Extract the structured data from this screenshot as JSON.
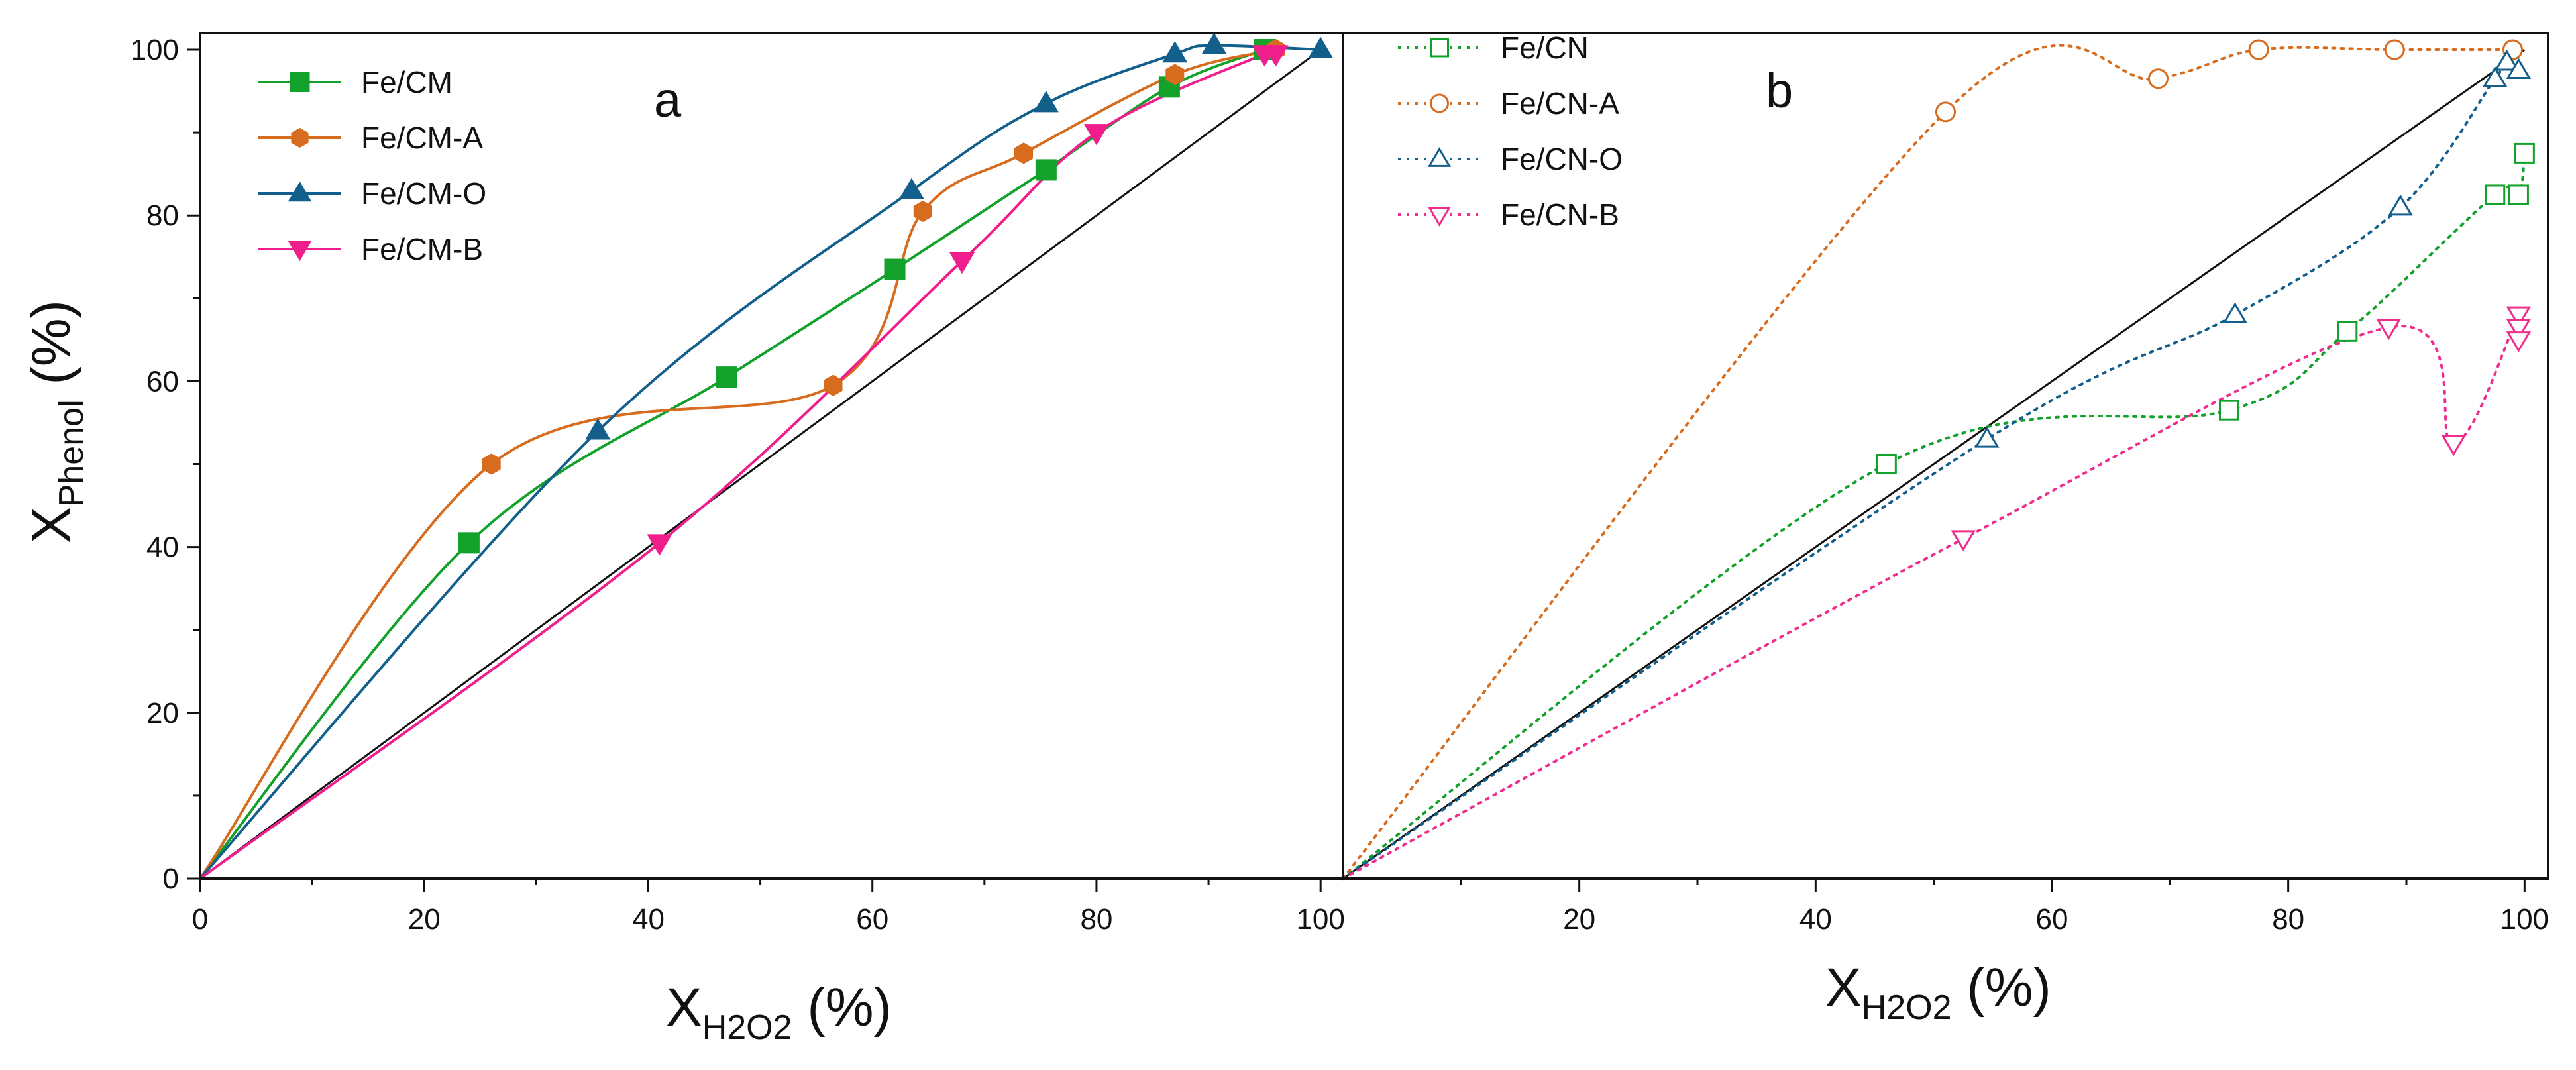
{
  "chart_data": [
    {
      "panel": "a",
      "type": "line",
      "x_label": "X",
      "x_label_sub": "H2O2",
      "x_label_unit": "(%)",
      "y_label": "X",
      "y_label_sub": "Phenol",
      "y_label_unit": "(%)",
      "xlim": [
        0,
        102
      ],
      "ylim": [
        0,
        102
      ],
      "xticks": [
        0,
        20,
        40,
        60,
        80,
        100
      ],
      "yticks": [
        0,
        20,
        40,
        60,
        80,
        100
      ],
      "legend_position": "top-left",
      "diagonal": true,
      "series": [
        {
          "name": "Fe/CM",
          "color": "#12a12a",
          "marker": "square",
          "filled": true,
          "line": "solid",
          "x": [
            0,
            24,
            47,
            62,
            75.5,
            86.5,
            95
          ],
          "y": [
            0,
            40.5,
            60.5,
            73.5,
            85.5,
            95.5,
            100
          ]
        },
        {
          "name": "Fe/CM-A",
          "color": "#d86c1e",
          "marker": "hexagon",
          "filled": true,
          "line": "solid",
          "x": [
            0,
            26,
            56.5,
            64.5,
            73.5,
            87,
            96
          ],
          "y": [
            0,
            50,
            59.5,
            80.5,
            87.5,
            97,
            100
          ]
        },
        {
          "name": "Fe/CM-O",
          "color": "#135f8c",
          "marker": "triangle-up",
          "filled": true,
          "line": "solid",
          "x": [
            0,
            35.5,
            63.5,
            75.5,
            87,
            90.5,
            100
          ],
          "y": [
            0,
            54,
            83,
            93.5,
            99.5,
            100.5,
            100
          ]
        },
        {
          "name": "Fe/CM-B",
          "color": "#f01d8c",
          "marker": "triangle-down",
          "filled": true,
          "line": "solid",
          "x": [
            0,
            41,
            68,
            80,
            95,
            96
          ],
          "y": [
            0,
            40.5,
            74.5,
            90,
            99.5,
            99.5
          ]
        }
      ]
    },
    {
      "panel": "b",
      "type": "line",
      "x_label": "X",
      "x_label_sub": "H2O2",
      "x_label_unit": "(%)",
      "xlim": [
        0,
        102
      ],
      "ylim": [
        0,
        102
      ],
      "xticks": [
        20,
        40,
        60,
        80,
        100
      ],
      "legend_position": "top-left",
      "diagonal": true,
      "series": [
        {
          "name": "Fe/CN",
          "color": "#12a12a",
          "marker": "square",
          "filled": false,
          "line": "dotted",
          "x": [
            0,
            46,
            75,
            85,
            97.5,
            99.5,
            100
          ],
          "y": [
            0,
            50,
            56.5,
            66,
            82.5,
            82.5,
            87.5
          ]
        },
        {
          "name": "Fe/CN-A",
          "color": "#d86c1e",
          "marker": "circle",
          "filled": false,
          "line": "dotted",
          "x": [
            0,
            51,
            69,
            77.5,
            89,
            99
          ],
          "y": [
            0,
            92.5,
            96.5,
            100,
            100,
            100
          ]
        },
        {
          "name": "Fe/CN-O",
          "color": "#135f8c",
          "marker": "triangle-up",
          "filled": false,
          "line": "dotted",
          "x": [
            0,
            54.5,
            75.5,
            89.5,
            97.5,
            98.5,
            99.5
          ],
          "y": [
            0,
            53,
            68,
            81,
            96.5,
            98.5,
            97.5
          ]
        },
        {
          "name": "Fe/CN-B",
          "color": "#f02d8c",
          "marker": "triangle-down",
          "filled": false,
          "line": "dotted",
          "x": [
            0,
            52.5,
            88.5,
            94,
            99.5,
            99.5,
            99.5
          ],
          "y": [
            0,
            41,
            66.5,
            52.5,
            68,
            66.5,
            65
          ]
        }
      ]
    }
  ],
  "panel_tags": {
    "a": "a",
    "b": "b"
  }
}
